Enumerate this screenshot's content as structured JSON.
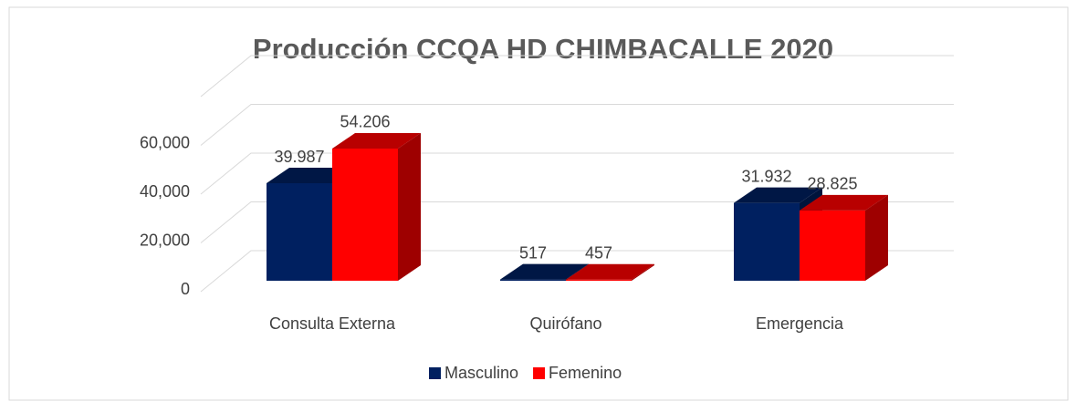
{
  "chart_data": {
    "type": "bar3d",
    "title": "Producción CCQA HD CHIMBACALLE 2020",
    "categories": [
      "Consulta Externa",
      "Quirófano",
      "Emergencia"
    ],
    "series": [
      {
        "name": "Masculino",
        "color": "#002060",
        "values": [
          39987,
          517,
          31932
        ],
        "value_labels": [
          "39.987",
          "517",
          "31.932"
        ]
      },
      {
        "name": "Femenino",
        "color": "#ff0000",
        "values": [
          54206,
          457,
          28825
        ],
        "value_labels": [
          "54.206",
          "457",
          "28.825"
        ]
      }
    ],
    "ylim": [
      0,
      80000
    ],
    "yticks": [
      0,
      {
        "value": 20000,
        "label": "20,000"
      },
      {
        "value": 40000,
        "label": "40,000"
      },
      {
        "value": 60000,
        "label": "60,000"
      }
    ],
    "grid": true,
    "legend": "bottom"
  }
}
